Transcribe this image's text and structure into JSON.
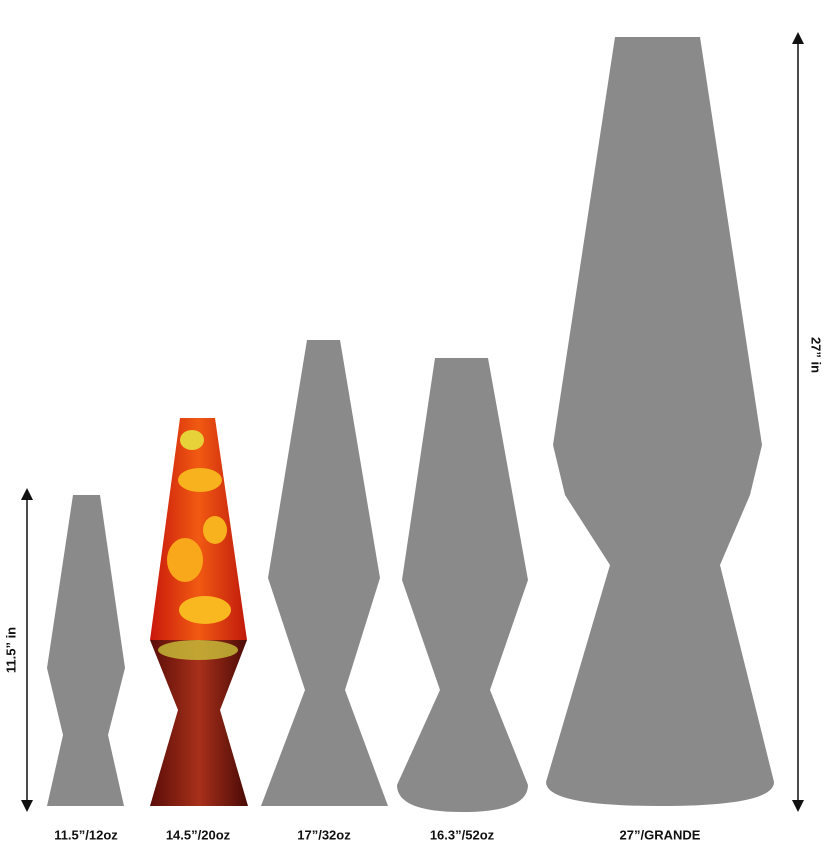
{
  "lamps": [
    {
      "label": "11.5”/12oz"
    },
    {
      "label": "14.5”/20oz"
    },
    {
      "label": "17”/32oz"
    },
    {
      "label": "16.3”/52oz"
    },
    {
      "label": "27”/GRANDE"
    }
  ],
  "dimensions": {
    "small": "11.5” in",
    "large": "27” in"
  }
}
